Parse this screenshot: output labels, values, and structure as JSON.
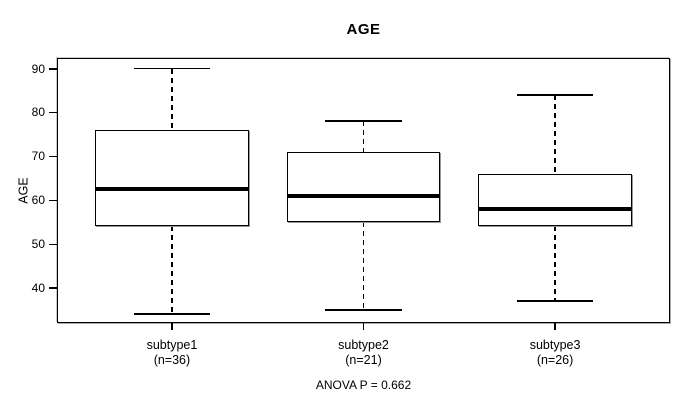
{
  "title": "AGE",
  "footer": "ANOVA P = 0.662",
  "chart_data": {
    "type": "boxplot",
    "title": "AGE",
    "xlabel": "",
    "ylabel": "AGE",
    "ylim": [
      32.0,
      92.4
    ],
    "yticks": [
      40,
      50,
      60,
      70,
      80,
      90
    ],
    "grid": false,
    "annotation": "ANOVA P = 0.662",
    "groups": [
      {
        "label": "subtype1",
        "sublabel": "(n=36)",
        "n": 36,
        "whisker_low": 34,
        "q1": 54,
        "median": 62.5,
        "q3": 76,
        "whisker_high": 90
      },
      {
        "label": "subtype2",
        "sublabel": "(n=21)",
        "n": 21,
        "whisker_low": 35,
        "q1": 55,
        "median": 61,
        "q3": 71,
        "whisker_high": 78
      },
      {
        "label": "subtype3",
        "sublabel": "(n=26)",
        "n": 26,
        "whisker_low": 37,
        "q1": 54,
        "median": 58,
        "q3": 66,
        "whisker_high": 84
      }
    ]
  }
}
